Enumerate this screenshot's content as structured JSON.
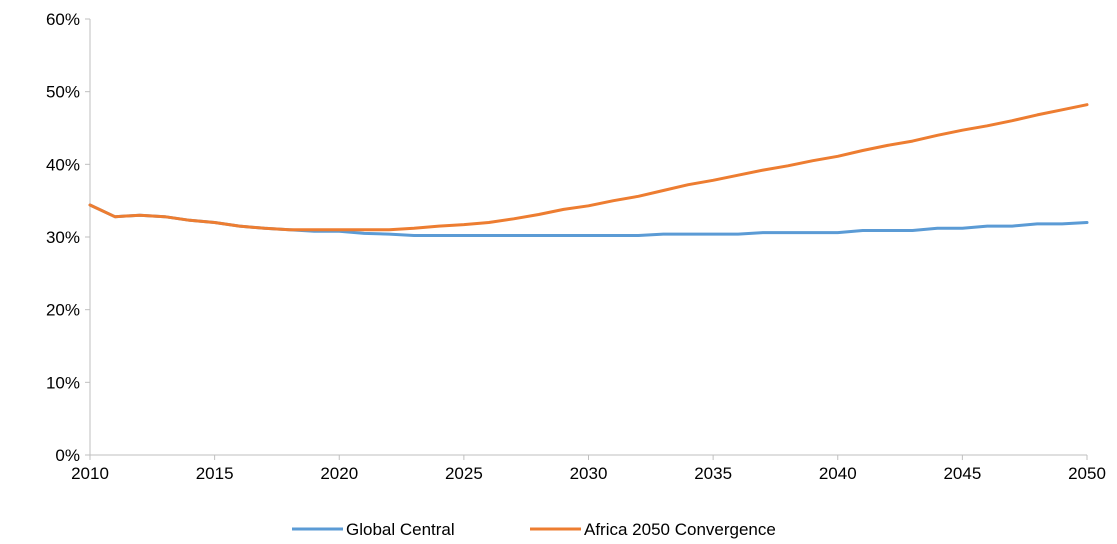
{
  "chart_data": {
    "type": "line",
    "title": "",
    "xlabel": "",
    "ylabel": "",
    "x": [
      2010,
      2011,
      2012,
      2013,
      2014,
      2015,
      2016,
      2017,
      2018,
      2019,
      2020,
      2021,
      2022,
      2023,
      2024,
      2025,
      2026,
      2027,
      2028,
      2029,
      2030,
      2031,
      2032,
      2033,
      2034,
      2035,
      2036,
      2037,
      2038,
      2039,
      2040,
      2041,
      2042,
      2043,
      2044,
      2045,
      2046,
      2047,
      2048,
      2049,
      2050
    ],
    "xlim": [
      2010,
      2050
    ],
    "ylim": [
      0,
      0.6
    ],
    "x_ticks": [
      "2010",
      "2015",
      "2020",
      "2025",
      "2030",
      "2035",
      "2040",
      "2045",
      "2050"
    ],
    "x_tick_values": [
      2010,
      2015,
      2020,
      2025,
      2030,
      2035,
      2040,
      2045,
      2050
    ],
    "y_ticks": [
      "0%",
      "10%",
      "20%",
      "30%",
      "40%",
      "50%",
      "60%"
    ],
    "y_tick_values": [
      0,
      0.1,
      0.2,
      0.3,
      0.4,
      0.5,
      0.6
    ],
    "grid": false,
    "legend_position": "bottom",
    "series": [
      {
        "name": "Global Central",
        "color": "#5b9bd5",
        "values": [
          0.344,
          0.328,
          0.33,
          0.328,
          0.323,
          0.32,
          0.315,
          0.312,
          0.31,
          0.308,
          0.308,
          0.305,
          0.304,
          0.302,
          0.302,
          0.302,
          0.302,
          0.302,
          0.302,
          0.302,
          0.302,
          0.302,
          0.302,
          0.304,
          0.304,
          0.304,
          0.304,
          0.306,
          0.306,
          0.306,
          0.306,
          0.309,
          0.309,
          0.309,
          0.312,
          0.312,
          0.315,
          0.315,
          0.318,
          0.318,
          0.32
        ]
      },
      {
        "name": "Africa 2050 Convergence",
        "color": "#ed7d31",
        "values": [
          0.344,
          0.328,
          0.33,
          0.328,
          0.323,
          0.32,
          0.315,
          0.312,
          0.31,
          0.31,
          0.31,
          0.31,
          0.31,
          0.312,
          0.315,
          0.317,
          0.32,
          0.325,
          0.331,
          0.338,
          0.343,
          0.35,
          0.356,
          0.364,
          0.372,
          0.378,
          0.385,
          0.392,
          0.398,
          0.405,
          0.411,
          0.419,
          0.426,
          0.432,
          0.44,
          0.447,
          0.453,
          0.46,
          0.468,
          0.475,
          0.482
        ]
      }
    ]
  }
}
